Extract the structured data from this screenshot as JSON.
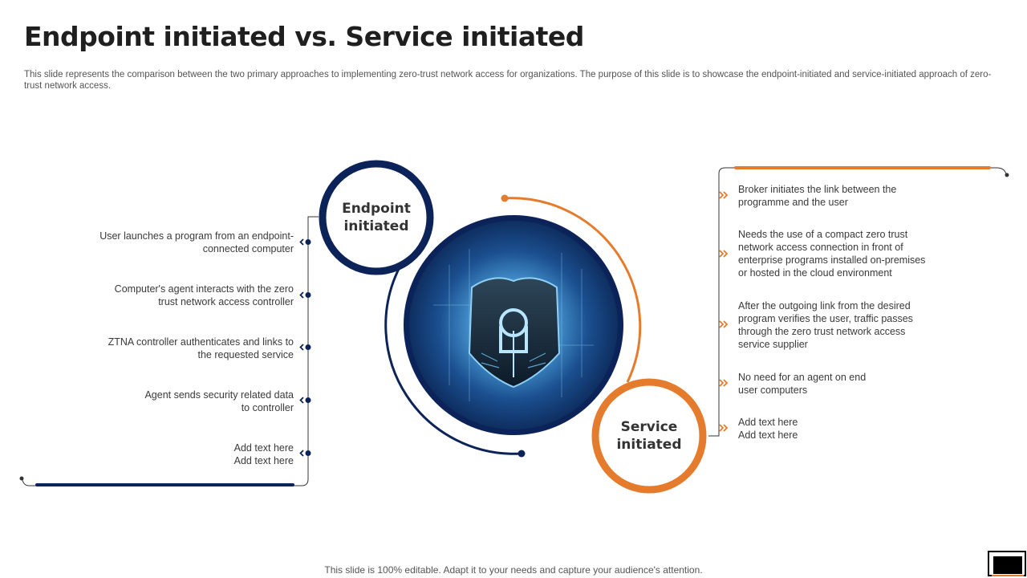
{
  "title": "Endpoint initiated vs. Service initiated",
  "subtitle": "This slide represents the comparison between the two primary approaches to implementing zero-trust network access for organizations. The purpose of this slide is to showcase the endpoint-initiated and service-initiated approach of zero-trust network access.",
  "endpoint": {
    "label_line1": "Endpoint",
    "label_line2": "initiated",
    "items": [
      {
        "line1": "User launches a program  from an endpoint-",
        "line2": "connected computer"
      },
      {
        "line1": "Computer's agent interacts with the zero",
        "line2": "trust network access controller"
      },
      {
        "line1": "ZTNA controller authenticates and links to",
        "line2": "the requested service"
      },
      {
        "line1": "Agent sends security related data",
        "line2": "to controller"
      },
      {
        "line1": "Add text here",
        "line2": "Add text here"
      }
    ]
  },
  "service": {
    "label_line1": "Service",
    "label_line2": "initiated",
    "items": [
      {
        "lines": [
          "Broker initiates the link between the",
          "programme  and the user"
        ]
      },
      {
        "lines": [
          "Needs the use of a compact zero trust",
          "network access connection in front of",
          "enterprise programs installed on-premises",
          "or hosted in the cloud environment"
        ]
      },
      {
        "lines": [
          "After the outgoing link from the desired",
          "program verifies  the user, traffic passes",
          "through the zero trust network access",
          "service  supplier"
        ]
      },
      {
        "lines": [
          "No need for an agent on end",
          "user computers"
        ]
      },
      {
        "lines": [
          "Add text here",
          "Add text here"
        ]
      }
    ]
  },
  "center_image_icon": "shield-lock-icon",
  "footer": "This slide is 100% editable. Adapt it to your needs and capture your audience's attention.",
  "colors": {
    "navy": "#0b2359",
    "orange": "#e57b2c",
    "text": "#3a3a3a"
  }
}
